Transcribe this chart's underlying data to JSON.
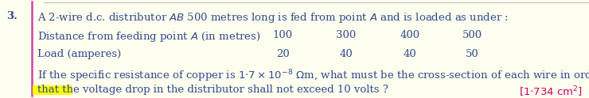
{
  "background_color": "#FFFFF0",
  "text_color": "#2E4A8B",
  "answer_color": "#CC0066",
  "line2_values": [
    "100",
    "300",
    "400",
    "500"
  ],
  "line3_values": [
    "20",
    "40",
    "40",
    "50"
  ],
  "highlight_color": "#FFFF00",
  "left_line_color": "#CC44AA",
  "top_line_color": "#BBBBBB",
  "fontsize": 9.5,
  "fig_w": 7.4,
  "fig_h": 1.24,
  "dpi": 100
}
